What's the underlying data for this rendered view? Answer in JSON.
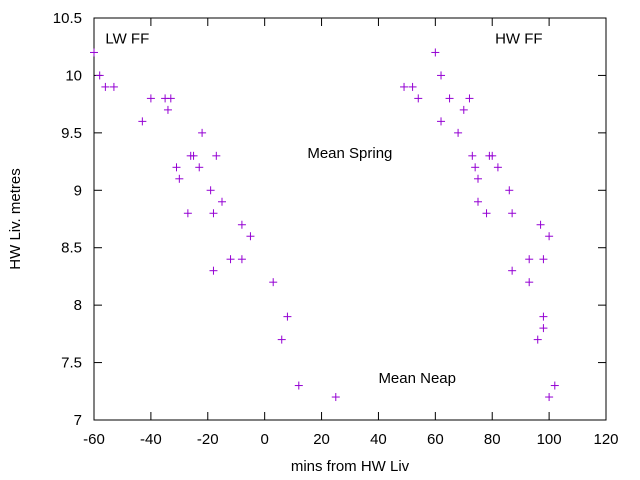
{
  "chart_data": {
    "type": "scatter",
    "title": "",
    "xlabel": "mins from HW Liv",
    "ylabel": "HW Liv. metres",
    "xlim": [
      -60,
      120
    ],
    "ylim": [
      7,
      10.5
    ],
    "xticks": [
      -60,
      -40,
      -20,
      0,
      20,
      40,
      60,
      80,
      100,
      120
    ],
    "yticks": [
      7,
      7.5,
      8,
      8.5,
      9,
      9.5,
      10,
      10.5
    ],
    "xtick_labels": [
      "-60",
      "-40",
      "-20",
      "0",
      "20",
      "40",
      "60",
      "80",
      "100",
      "120"
    ],
    "ytick_labels": [
      "7",
      "7.5",
      "8",
      "8.5",
      "9",
      "9.5",
      "10",
      "10.5"
    ],
    "grid": false,
    "marker": "plus",
    "marker_color": "#9400d3",
    "annotations": [
      {
        "text": "LW  FF",
        "x": -56,
        "y": 10.28
      },
      {
        "text": "HW FF",
        "x": 81,
        "y": 10.28
      },
      {
        "text": "Mean Spring",
        "x": 15,
        "y": 9.28
      },
      {
        "text": "Mean Neap",
        "x": 40,
        "y": 7.32
      }
    ],
    "series": [
      {
        "name": "HW Liv",
        "points": [
          [
            -60,
            10.2
          ],
          [
            -58,
            10.0
          ],
          [
            -56,
            9.9
          ],
          [
            -53,
            9.9
          ],
          [
            -43,
            9.6
          ],
          [
            -40,
            9.8
          ],
          [
            -35,
            9.8
          ],
          [
            -34,
            9.7
          ],
          [
            -33,
            9.8
          ],
          [
            -31,
            9.2
          ],
          [
            -30,
            9.1
          ],
          [
            -27,
            8.8
          ],
          [
            -26,
            9.3
          ],
          [
            -25,
            9.3
          ],
          [
            -23,
            9.2
          ],
          [
            -22,
            9.5
          ],
          [
            -19,
            9.0
          ],
          [
            -18,
            8.8
          ],
          [
            -18,
            8.3
          ],
          [
            -17,
            9.3
          ],
          [
            -15,
            8.9
          ],
          [
            -12,
            8.4
          ],
          [
            -8,
            8.7
          ],
          [
            -8,
            8.4
          ],
          [
            -5,
            8.6
          ],
          [
            3,
            8.2
          ],
          [
            6,
            7.7
          ],
          [
            8,
            7.9
          ],
          [
            12,
            7.3
          ],
          [
            25,
            7.2
          ],
          [
            49,
            9.9
          ],
          [
            52,
            9.9
          ],
          [
            54,
            9.8
          ],
          [
            60,
            10.2
          ],
          [
            62,
            10.0
          ],
          [
            62,
            9.6
          ],
          [
            65,
            9.8
          ],
          [
            68,
            9.5
          ],
          [
            70,
            9.7
          ],
          [
            72,
            9.8
          ],
          [
            73,
            9.3
          ],
          [
            74,
            9.2
          ],
          [
            75,
            9.1
          ],
          [
            75,
            8.9
          ],
          [
            78,
            8.8
          ],
          [
            79,
            9.3
          ],
          [
            80,
            9.3
          ],
          [
            82,
            9.2
          ],
          [
            86,
            9.0
          ],
          [
            87,
            8.8
          ],
          [
            87,
            8.3
          ],
          [
            93,
            8.4
          ],
          [
            93,
            8.2
          ],
          [
            96,
            7.7
          ],
          [
            97,
            8.7
          ],
          [
            98,
            8.4
          ],
          [
            98,
            7.9
          ],
          [
            98,
            7.8
          ],
          [
            100,
            8.6
          ],
          [
            100,
            7.2
          ],
          [
            102,
            7.3
          ]
        ]
      }
    ]
  }
}
